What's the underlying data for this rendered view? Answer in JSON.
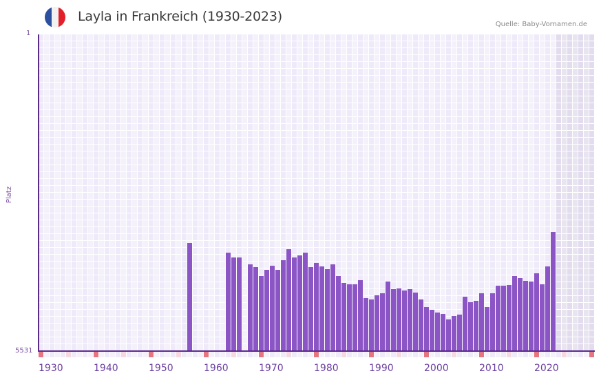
{
  "header": {
    "title": "Layla in Frankreich (1930-2023)",
    "source": "Quelle: Baby-Vornamen.de",
    "flag": {
      "icon": "france-flag-icon",
      "colors": [
        "#2d4fa0",
        "#f2f2f2",
        "#e3202a"
      ]
    }
  },
  "axes": {
    "y_title": "Platz",
    "y_top": "1",
    "y_bottom": "5531",
    "x_ticks": [
      "1930",
      "1940",
      "1950",
      "1960",
      "1970",
      "1980",
      "1990",
      "2000",
      "2010",
      "2020"
    ]
  },
  "colors": {
    "bar": "#8b55c6",
    "axis": "#5b2a8c",
    "grid_a": "#efeafa",
    "grid_b": "#f4f1fb",
    "future_a": "#e2dcee",
    "future_b": "#e8e4f0",
    "decade_tick": "#e57681",
    "half_decade_tick": "#f6d9e0",
    "label": "#6b3fa0"
  },
  "chart_data": {
    "type": "bar",
    "title": "Layla in Frankreich (1930-2023)",
    "xlabel": "",
    "ylabel": "Platz",
    "ylim": [
      5531,
      1
    ],
    "y_inverted": true,
    "xlim": [
      1930,
      2030
    ],
    "shaded_future_from": 2024,
    "grid": true,
    "legend": null,
    "source": "Quelle: Baby-Vornamen.de",
    "categories": [
      1957,
      1964,
      1965,
      1966,
      1968,
      1969,
      1970,
      1971,
      1972,
      1973,
      1974,
      1975,
      1976,
      1977,
      1978,
      1979,
      1980,
      1981,
      1982,
      1983,
      1984,
      1985,
      1986,
      1987,
      1988,
      1989,
      1990,
      1991,
      1992,
      1993,
      1994,
      1995,
      1996,
      1997,
      1998,
      1999,
      2000,
      2001,
      2002,
      2003,
      2004,
      2005,
      2006,
      2007,
      2008,
      2009,
      2010,
      2011,
      2012,
      2013,
      2014,
      2015,
      2016,
      2017,
      2018,
      2019,
      2020,
      2021,
      2022,
      2023
    ],
    "values": [
      3644,
      3812,
      3896,
      3896,
      4016,
      4064,
      4221,
      4113,
      4040,
      4113,
      3944,
      3752,
      3896,
      3860,
      3812,
      4064,
      3992,
      4052,
      4100,
      4016,
      4221,
      4341,
      4365,
      4365,
      4293,
      4605,
      4629,
      4557,
      4521,
      4317,
      4449,
      4437,
      4473,
      4449,
      4509,
      4629,
      4762,
      4810,
      4858,
      4882,
      4978,
      4918,
      4894,
      4581,
      4677,
      4653,
      4521,
      4762,
      4521,
      4389,
      4389,
      4377,
      4221,
      4257,
      4305,
      4317,
      4173,
      4365,
      4052,
      3451
    ]
  }
}
